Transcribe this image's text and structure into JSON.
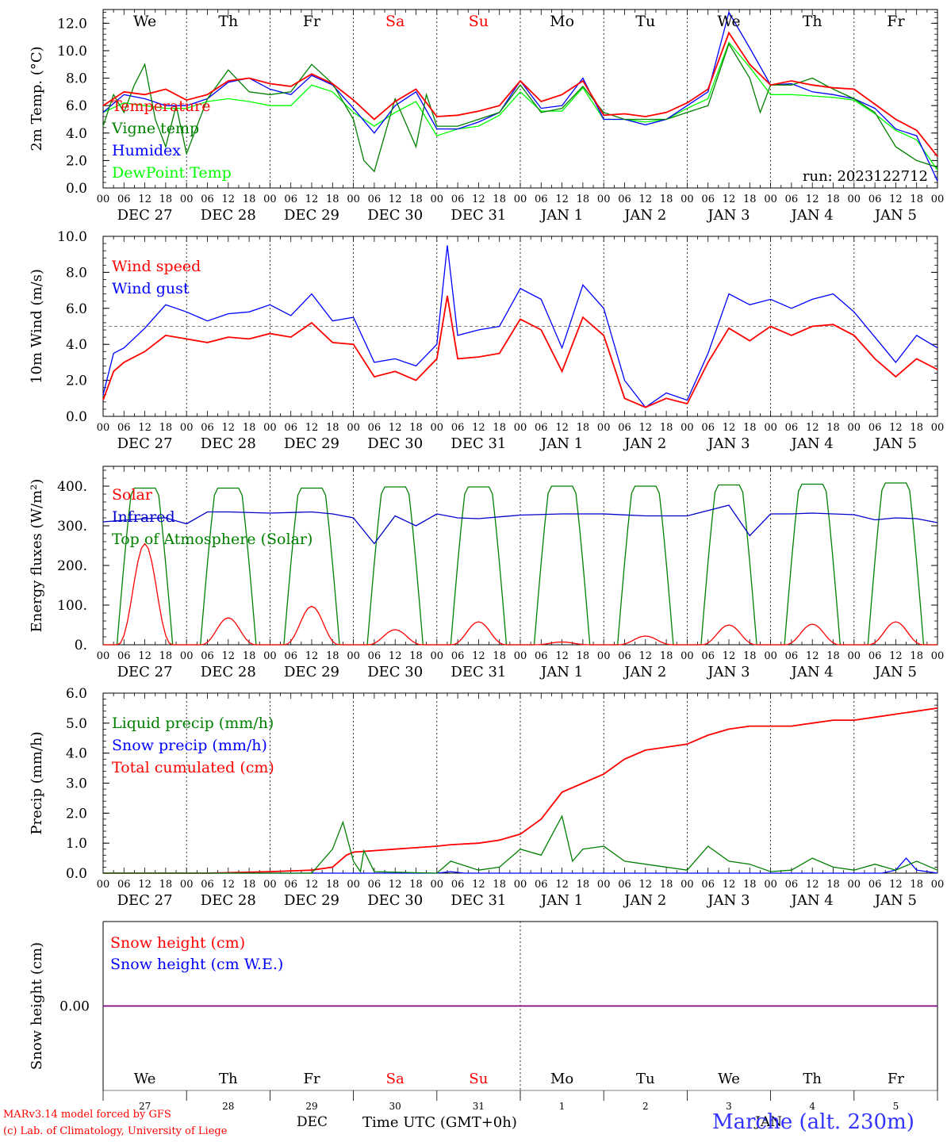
{
  "days_top": [
    "We",
    "Th",
    "Fr",
    "Sa",
    "Su",
    "Mo",
    "Tu",
    "We",
    "Th",
    "Fr"
  ],
  "weekend_days": [
    "Sa",
    "Su"
  ],
  "weekend_color": "#ff0000",
  "hour_ticks": [
    "00",
    "06",
    "12",
    "18"
  ],
  "date_labels": [
    "DEC 27",
    "DEC 28",
    "DEC 29",
    "DEC 30",
    "DEC 31",
    "JAN  1",
    "JAN  2",
    "JAN  3",
    "JAN  4",
    "JAN  5"
  ],
  "run_label": "run: 2023122712",
  "footer": {
    "model": "MARv3.14 model forced by GFS",
    "lab": "(c) Lab. of Climatology, University of Liege",
    "dec": "DEC",
    "jan": "JAN",
    "time_label": "Time UTC (GMT+0h)",
    "location": "Marche (alt. 230m)"
  },
  "bottom_days": [
    "We",
    "Th",
    "Fr",
    "Sa",
    "Su",
    "Mo",
    "Tu",
    "We",
    "Th",
    "Fr"
  ],
  "bottom_dates": [
    "27",
    "28",
    "29",
    "30",
    "31",
    "1",
    "2",
    "3",
    "4",
    "5"
  ],
  "chart_data": [
    {
      "type": "line",
      "ylabel": "2m Temp. (°C)",
      "ylim": [
        0,
        13
      ],
      "yticks": [
        "0.0",
        "2.0",
        "4.0",
        "6.0",
        "8.0",
        "10.0",
        "12.0"
      ],
      "x_unit": "hours from 2023-12-27 00 UTC",
      "series": [
        {
          "name": "Temperature",
          "color": "#ff0000",
          "x": [
            0,
            6,
            12,
            18,
            24,
            30,
            36,
            42,
            48,
            54,
            60,
            66,
            72,
            78,
            84,
            90,
            96,
            102,
            108,
            114,
            120,
            126,
            132,
            138,
            144,
            150,
            156,
            162,
            168,
            174,
            180,
            186,
            192,
            198,
            204,
            210,
            216,
            222,
            228,
            234,
            240
          ],
          "y": [
            6.0,
            7.0,
            6.8,
            7.2,
            6.4,
            6.8,
            7.8,
            8.0,
            7.6,
            7.4,
            8.3,
            7.6,
            6.4,
            5.0,
            6.3,
            7.2,
            5.2,
            5.3,
            5.6,
            6.0,
            7.8,
            6.3,
            6.8,
            7.8,
            5.3,
            5.4,
            5.2,
            5.5,
            6.2,
            7.2,
            11.3,
            9.0,
            7.5,
            7.8,
            7.5,
            7.3,
            7.2,
            6.1,
            5.0,
            4.2,
            2.3
          ]
        },
        {
          "name": "Vigne temp",
          "color": "#008000",
          "x": [
            0,
            3,
            6,
            9,
            12,
            15,
            18,
            21,
            24,
            30,
            36,
            42,
            48,
            54,
            60,
            66,
            72,
            75,
            78,
            84,
            90,
            93,
            96,
            102,
            108,
            114,
            120,
            126,
            132,
            138,
            144,
            150,
            156,
            162,
            168,
            174,
            180,
            186,
            189,
            192,
            198,
            204,
            210,
            216,
            222,
            228,
            234,
            240
          ],
          "y": [
            4.5,
            6.8,
            5.5,
            7.5,
            9.0,
            5.0,
            3.0,
            6.0,
            2.5,
            6.5,
            8.6,
            7.0,
            6.8,
            7.0,
            9.0,
            7.6,
            5.0,
            2.0,
            1.2,
            6.5,
            3.0,
            6.8,
            4.5,
            4.5,
            5.0,
            5.5,
            7.5,
            5.5,
            5.8,
            7.4,
            5.5,
            5.0,
            5.0,
            5.0,
            5.5,
            6.0,
            10.5,
            8.0,
            5.5,
            7.5,
            7.5,
            8.0,
            7.2,
            6.5,
            5.5,
            3.0,
            2.0,
            1.5
          ]
        },
        {
          "name": "Humidex",
          "color": "#0000ff",
          "x": [
            0,
            6,
            12,
            18,
            24,
            30,
            36,
            42,
            48,
            54,
            60,
            66,
            72,
            78,
            84,
            90,
            96,
            102,
            108,
            114,
            120,
            126,
            132,
            138,
            144,
            150,
            156,
            162,
            168,
            174,
            180,
            186,
            192,
            198,
            204,
            210,
            216,
            222,
            228,
            234,
            240
          ],
          "y": [
            5.5,
            6.8,
            6.5,
            6.0,
            6.0,
            6.5,
            7.7,
            8.0,
            7.2,
            6.8,
            8.2,
            7.5,
            5.8,
            4.0,
            6.0,
            7.0,
            4.3,
            4.3,
            4.8,
            5.5,
            7.8,
            5.8,
            6.0,
            8.0,
            5.0,
            5.0,
            4.6,
            5.0,
            6.0,
            7.0,
            12.8,
            10.2,
            7.5,
            7.6,
            7.0,
            6.8,
            6.5,
            5.8,
            4.3,
            3.8,
            0.5
          ]
        },
        {
          "name": "DewPoint Temp",
          "color": "#00ff00",
          "x": [
            0,
            6,
            12,
            18,
            24,
            30,
            36,
            42,
            48,
            54,
            60,
            66,
            72,
            78,
            84,
            90,
            96,
            102,
            108,
            114,
            120,
            126,
            132,
            138,
            144,
            150,
            156,
            162,
            168,
            174,
            180,
            186,
            192,
            198,
            204,
            210,
            216,
            222,
            228,
            234,
            240
          ],
          "y": [
            5.5,
            6.2,
            6.0,
            5.8,
            5.8,
            6.3,
            6.5,
            6.3,
            6.0,
            6.0,
            7.5,
            7.0,
            5.5,
            4.5,
            5.5,
            6.3,
            3.8,
            4.3,
            4.5,
            5.3,
            7.0,
            5.6,
            5.6,
            7.3,
            5.0,
            5.0,
            4.8,
            5.0,
            5.8,
            6.5,
            10.6,
            8.8,
            6.8,
            6.8,
            6.7,
            6.6,
            6.4,
            5.4,
            4.2,
            3.5,
            1.3
          ]
        }
      ]
    },
    {
      "type": "line",
      "ylabel": "10m Wind (m/s)",
      "ylim": [
        0,
        10
      ],
      "yticks": [
        "0.0",
        "2.0",
        "4.0",
        "6.0",
        "8.0",
        "10.0"
      ],
      "reference_line": 5.0,
      "series": [
        {
          "name": "Wind speed",
          "color": "#ff0000",
          "x": [
            0,
            3,
            6,
            12,
            18,
            24,
            30,
            36,
            42,
            48,
            54,
            60,
            66,
            72,
            78,
            84,
            90,
            96,
            99,
            102,
            108,
            114,
            120,
            126,
            132,
            138,
            144,
            150,
            156,
            162,
            168,
            174,
            180,
            186,
            192,
            198,
            204,
            210,
            216,
            222,
            228,
            234,
            240
          ],
          "y": [
            0.9,
            2.5,
            3.0,
            3.6,
            4.5,
            4.3,
            4.1,
            4.4,
            4.3,
            4.6,
            4.4,
            5.2,
            4.1,
            4.0,
            2.2,
            2.5,
            2.0,
            3.2,
            6.7,
            3.2,
            3.3,
            3.5,
            5.4,
            4.8,
            2.5,
            5.5,
            4.5,
            1.0,
            0.5,
            1.0,
            0.7,
            3.0,
            4.9,
            4.2,
            5.0,
            4.5,
            5.0,
            5.1,
            4.5,
            3.2,
            2.2,
            3.2,
            2.6
          ]
        },
        {
          "name": "Wind gust",
          "color": "#0000ff",
          "x": [
            0,
            3,
            6,
            12,
            18,
            24,
            30,
            36,
            42,
            48,
            54,
            60,
            66,
            72,
            78,
            84,
            90,
            96,
            99,
            102,
            108,
            114,
            120,
            126,
            132,
            138,
            144,
            150,
            156,
            162,
            168,
            174,
            180,
            186,
            192,
            198,
            204,
            210,
            216,
            222,
            228,
            234,
            240
          ],
          "y": [
            1.2,
            3.5,
            3.8,
            4.9,
            6.2,
            5.8,
            5.3,
            5.7,
            5.8,
            6.2,
            5.6,
            6.8,
            5.3,
            5.5,
            3.0,
            3.2,
            2.8,
            4.0,
            9.5,
            4.5,
            4.8,
            5.0,
            7.1,
            6.5,
            3.8,
            7.3,
            6.0,
            2.0,
            0.5,
            1.3,
            0.9,
            3.5,
            6.8,
            6.2,
            6.5,
            6.0,
            6.5,
            6.8,
            5.8,
            4.4,
            3.0,
            4.5,
            3.8
          ]
        }
      ]
    },
    {
      "type": "line",
      "ylabel": "Energy fluxes (W/m²)",
      "ylim": [
        0,
        450
      ],
      "yticks": [
        "0.",
        "100.",
        "200.",
        "300.",
        "400."
      ],
      "series": [
        {
          "name": "Solar",
          "color": "#ff0000",
          "peaks": [
            255,
            68,
            97,
            38,
            58,
            7,
            22,
            50,
            52,
            58
          ]
        },
        {
          "name": "Infrared",
          "color": "#0000cc",
          "x": [
            0,
            12,
            18,
            24,
            30,
            36,
            48,
            60,
            66,
            72,
            78,
            84,
            90,
            96,
            102,
            108,
            120,
            132,
            144,
            156,
            168,
            180,
            186,
            192,
            198,
            204,
            216,
            222,
            228,
            234,
            240
          ],
          "y": [
            310,
            318,
            320,
            305,
            335,
            335,
            332,
            335,
            330,
            320,
            255,
            325,
            300,
            330,
            320,
            318,
            327,
            330,
            330,
            325,
            325,
            352,
            275,
            330,
            330,
            332,
            328,
            315,
            320,
            318,
            308
          ]
        },
        {
          "name": "Top of Atmosphere (Solar)",
          "color": "#008000",
          "peaks": [
            395,
            395,
            395,
            398,
            398,
            400,
            400,
            403,
            405,
            408
          ]
        }
      ]
    },
    {
      "type": "line",
      "ylabel": "Precip (mm/h)",
      "ylim": [
        0,
        6
      ],
      "yticks": [
        "0.0",
        "1.0",
        "2.0",
        "3.0",
        "4.0",
        "5.0",
        "6.0"
      ],
      "series": [
        {
          "name": "Liquid precip (mm/h)",
          "color": "#008000",
          "x": [
            0,
            60,
            66,
            69,
            72,
            74,
            75,
            78,
            96,
            100,
            108,
            114,
            120,
            126,
            132,
            135,
            138,
            144,
            150,
            156,
            168,
            174,
            180,
            186,
            192,
            198,
            204,
            210,
            216,
            222,
            228,
            234,
            240
          ],
          "y": [
            0,
            0,
            0.8,
            1.7,
            0.4,
            0.05,
            0.75,
            0.05,
            0,
            0.4,
            0.1,
            0.2,
            0.8,
            0.6,
            1.9,
            0.4,
            0.8,
            0.9,
            0.4,
            0.3,
            0.1,
            0.9,
            0.4,
            0.3,
            0.05,
            0.1,
            0.5,
            0.2,
            0.1,
            0.3,
            0.1,
            0.4,
            0.1
          ]
        },
        {
          "name": "Snow precip (mm/h)",
          "color": "#0000ff",
          "x": [
            0,
            96,
            100,
            104,
            224,
            228,
            231,
            234,
            240
          ],
          "y": [
            0,
            0,
            0.05,
            0,
            0,
            0.1,
            0.5,
            0.1,
            0
          ]
        },
        {
          "name": "Total cumulated (cm)",
          "color": "#ff0000",
          "x": [
            0,
            30,
            48,
            60,
            66,
            70,
            72,
            78,
            84,
            96,
            100,
            108,
            114,
            120,
            126,
            132,
            138,
            144,
            150,
            156,
            162,
            168,
            174,
            180,
            186,
            192,
            198,
            204,
            210,
            216,
            222,
            228,
            234,
            240
          ],
          "y": [
            0,
            0,
            0.05,
            0.1,
            0.2,
            0.6,
            0.7,
            0.75,
            0.8,
            0.9,
            0.95,
            1.0,
            1.1,
            1.3,
            1.8,
            2.7,
            3.0,
            3.3,
            3.8,
            4.1,
            4.2,
            4.3,
            4.6,
            4.8,
            4.9,
            4.9,
            4.9,
            5.0,
            5.1,
            5.1,
            5.2,
            5.3,
            5.4,
            5.5
          ]
        }
      ]
    },
    {
      "type": "line",
      "ylabel": "Snow height (cm)",
      "ylim": [
        -1,
        1
      ],
      "yticks": [
        "0.00"
      ],
      "series": [
        {
          "name": "Snow height (cm)",
          "color": "#ff0000",
          "x": [
            0,
            240
          ],
          "y": [
            0,
            0
          ]
        },
        {
          "name": "Snow height (cm W.E.)",
          "color": "#0000ff",
          "x": [
            0,
            240
          ],
          "y": [
            0,
            0
          ]
        }
      ]
    }
  ]
}
